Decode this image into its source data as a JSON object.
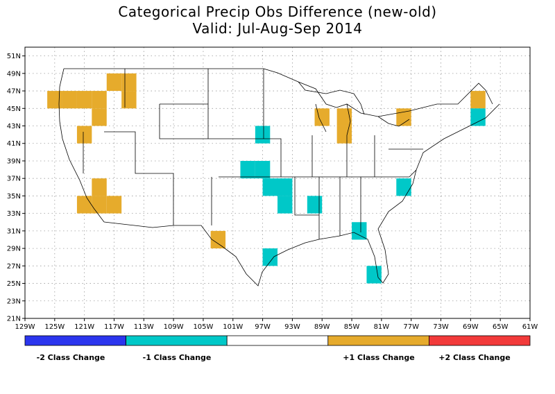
{
  "title": "Categorical Precip Obs Difference (new-old)",
  "subtitle": "Valid: Jul-Aug-Sep 2014",
  "map": {
    "lon_range": [
      -129,
      -61
    ],
    "lat_range": [
      21,
      52
    ],
    "grid": true,
    "lon_ticks": [
      {
        "value": -129,
        "label": "129W"
      },
      {
        "value": -125,
        "label": "125W"
      },
      {
        "value": -121,
        "label": "121W"
      },
      {
        "value": -117,
        "label": "117W"
      },
      {
        "value": -113,
        "label": "113W"
      },
      {
        "value": -109,
        "label": "109W"
      },
      {
        "value": -105,
        "label": "105W"
      },
      {
        "value": -101,
        "label": "101W"
      },
      {
        "value": -97,
        "label": "97W"
      },
      {
        "value": -93,
        "label": "93W"
      },
      {
        "value": -89,
        "label": "89W"
      },
      {
        "value": -85,
        "label": "85W"
      },
      {
        "value": -81,
        "label": "81W"
      },
      {
        "value": -77,
        "label": "77W"
      },
      {
        "value": -73,
        "label": "73W"
      },
      {
        "value": -69,
        "label": "69W"
      },
      {
        "value": -65,
        "label": "65W"
      },
      {
        "value": -61,
        "label": "61W"
      }
    ],
    "lat_ticks": [
      {
        "value": 51,
        "label": "51N"
      },
      {
        "value": 49,
        "label": "49N"
      },
      {
        "value": 47,
        "label": "47N"
      },
      {
        "value": 45,
        "label": "45N"
      },
      {
        "value": 43,
        "label": "43N"
      },
      {
        "value": 41,
        "label": "41N"
      },
      {
        "value": 39,
        "label": "39N"
      },
      {
        "value": 37,
        "label": "37N"
      },
      {
        "value": 35,
        "label": "35N"
      },
      {
        "value": 33,
        "label": "33N"
      },
      {
        "value": 31,
        "label": "31N"
      },
      {
        "value": 29,
        "label": "29N"
      },
      {
        "value": 27,
        "label": "27N"
      },
      {
        "value": 25,
        "label": "25N"
      },
      {
        "value": 23,
        "label": "23N"
      },
      {
        "value": 21,
        "label": "21N"
      }
    ],
    "cells": [
      {
        "lon": -125,
        "lat": 46,
        "change": 1
      },
      {
        "lon": -123,
        "lat": 46,
        "change": 1
      },
      {
        "lon": -121,
        "lat": 46,
        "change": 1
      },
      {
        "lon": -119,
        "lat": 46,
        "change": 1
      },
      {
        "lon": -119,
        "lat": 44,
        "change": 1
      },
      {
        "lon": -121,
        "lat": 42,
        "change": 1
      },
      {
        "lon": -117,
        "lat": 48,
        "change": 1
      },
      {
        "lon": -115,
        "lat": 48,
        "change": 1
      },
      {
        "lon": -115,
        "lat": 46,
        "change": 1
      },
      {
        "lon": -119,
        "lat": 36,
        "change": 1
      },
      {
        "lon": -121,
        "lat": 34,
        "change": 1
      },
      {
        "lon": -119,
        "lat": 34,
        "change": 1
      },
      {
        "lon": -117,
        "lat": 34,
        "change": 1
      },
      {
        "lon": -103,
        "lat": 30,
        "change": 1
      },
      {
        "lon": -89,
        "lat": 44,
        "change": 1
      },
      {
        "lon": -86,
        "lat": 44,
        "change": 1
      },
      {
        "lon": -86,
        "lat": 42,
        "change": 1
      },
      {
        "lon": -78,
        "lat": 44,
        "change": 1
      },
      {
        "lon": -68,
        "lat": 46,
        "change": 1
      },
      {
        "lon": -97,
        "lat": 42,
        "change": -1
      },
      {
        "lon": -99,
        "lat": 38,
        "change": -1
      },
      {
        "lon": -97,
        "lat": 38,
        "change": -1
      },
      {
        "lon": -96,
        "lat": 36,
        "change": -1
      },
      {
        "lon": -94,
        "lat": 36,
        "change": -1
      },
      {
        "lon": -94,
        "lat": 34,
        "change": -1
      },
      {
        "lon": -90,
        "lat": 34,
        "change": -1
      },
      {
        "lon": -84,
        "lat": 31,
        "change": -1
      },
      {
        "lon": -96,
        "lat": 28,
        "change": -1
      },
      {
        "lon": -82,
        "lat": 26,
        "change": -1
      },
      {
        "lon": -78,
        "lat": 36,
        "change": -1
      },
      {
        "lon": -68,
        "lat": 44,
        "change": -1
      }
    ]
  },
  "colors": {
    "minus2": "#2b35ee",
    "minus1": "#00c8c8",
    "zero": "#ffffff",
    "plus1": "#e6ab2c",
    "plus2": "#f23a3a"
  },
  "legend": {
    "labels": {
      "minus2": "-2 Class Change",
      "minus1": "-1 Class Change",
      "plus1": "+1 Class Change",
      "plus2": "+2 Class Change"
    }
  }
}
